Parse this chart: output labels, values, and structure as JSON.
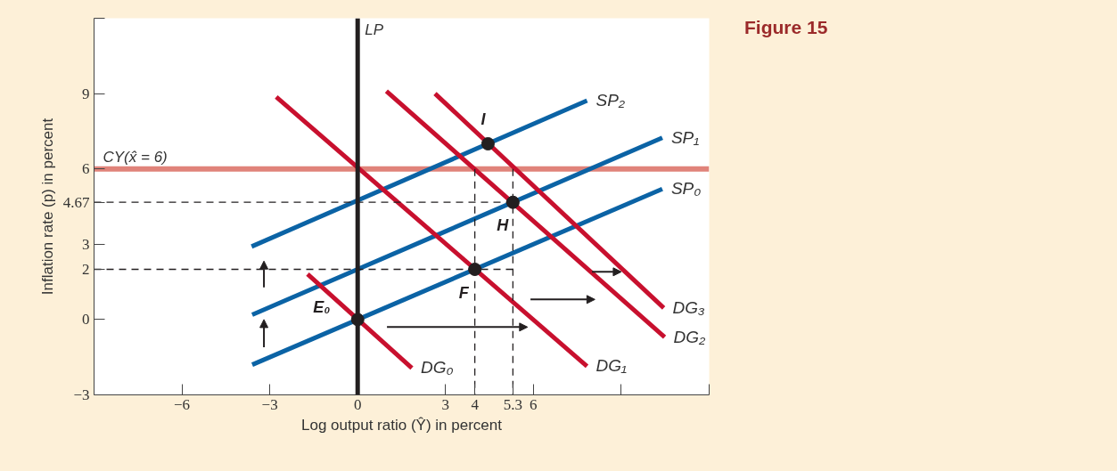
{
  "chart_data": {
    "type": "line",
    "title": "Figure 15",
    "xlabel": "Log output ratio (Ŷ) in percent",
    "ylabel": "Inflation rate (p) in percent",
    "xlim": [
      -9,
      12
    ],
    "ylim": [
      -3,
      12
    ],
    "xticks": [
      -6,
      -3,
      0,
      3,
      4,
      5.3,
      6,
      {
        "value": 9,
        "label": null
      },
      {
        "value": 12,
        "label": null
      }
    ],
    "yticks": [
      -3,
      0,
      2,
      3,
      4.67,
      6,
      9,
      {
        "value": 12,
        "label": null
      }
    ],
    "grid": false,
    "legend": false,
    "series": [
      {
        "name": "SP₀",
        "color": "#0b63a5",
        "x": [
          -3.6,
          10.4
        ],
        "values": [
          -1.8,
          5.2
        ]
      },
      {
        "name": "SP₁",
        "color": "#0b63a5",
        "x": [
          -3.6,
          10.4
        ],
        "values": [
          0.19,
          7.24
        ]
      },
      {
        "name": "SP₂",
        "color": "#0b63a5",
        "x": [
          -3.62,
          7.83
        ],
        "values": [
          2.91,
          8.72
        ]
      },
      {
        "name": "DG₀",
        "color": "#c8102e",
        "x": [
          -1.71,
          1.85
        ],
        "values": [
          1.81,
          -1.93
        ]
      },
      {
        "name": "DG₁",
        "color": "#c8102e",
        "x": [
          -2.78,
          7.83
        ],
        "values": [
          8.87,
          -1.86
        ]
      },
      {
        "name": "DG₂",
        "color": "#c8102e",
        "x": [
          0.98,
          10.48
        ],
        "values": [
          9.1,
          -0.7
        ]
      },
      {
        "name": "DG₃",
        "color": "#c8102e",
        "x": [
          2.64,
          10.45
        ],
        "values": [
          9.0,
          0.46
        ]
      },
      {
        "color": "#231f20",
        "line_style": "dashed",
        "x": [
          -9,
          5.3
        ],
        "values": [
          4.67,
          4.67
        ]
      },
      {
        "color": "#231f20",
        "line_style": "dashed",
        "x": [
          -9,
          5.3
        ],
        "values": [
          2,
          2
        ]
      },
      {
        "color": "#231f20",
        "line_style": "dashed",
        "x": [
          4,
          4
        ],
        "values": [
          6,
          -3
        ]
      },
      {
        "color": "#231f20",
        "line_style": "dashed",
        "x": [
          5.3,
          5.3
        ],
        "values": [
          6,
          -3
        ]
      },
      {
        "type": "scatter",
        "marker": "circle",
        "color": "#231f20",
        "x": [
          0,
          4,
          5.3,
          4.45
        ],
        "values": [
          0,
          2,
          4.67,
          7.0
        ]
      }
    ],
    "ref_lines": [
      {
        "axis": "x",
        "value": 0,
        "label": "LP",
        "color": "#231f20"
      },
      {
        "axis": "y",
        "value": 6,
        "label": "CY(x̂ = 6)",
        "color": "#e0837a"
      }
    ],
    "annotations": [
      {
        "text": "E₀",
        "x": 0,
        "y": 0
      },
      {
        "text": "F",
        "x": 4,
        "y": 2
      },
      {
        "text": "H",
        "x": 5.3,
        "y": 4.67
      },
      {
        "text": "I",
        "x": 4.45,
        "y": 7.0
      }
    ]
  }
}
